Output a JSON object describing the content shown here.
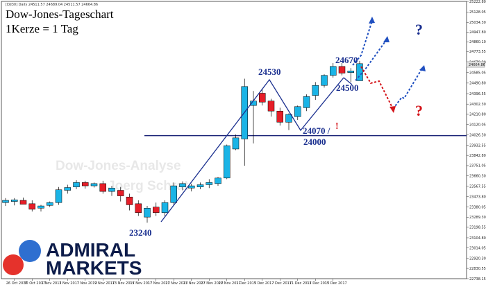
{
  "header": {
    "symbol_line": "[DJI30] Daily  24511.57 24689.04 24511.57 24664.86"
  },
  "titles": {
    "line1": "Dow-Jones-Tageschart",
    "line2": "1Kerze = 1 Tag"
  },
  "watermarks": {
    "line1": "Dow-Jones-Analyse",
    "line2": "Joerg Schrat"
  },
  "logo": {
    "line1": "ADMIRAL",
    "line2": "MARKETS",
    "colors": {
      "blue": "#2e6fd0",
      "red": "#e5322c",
      "text": "#0d1c4a"
    }
  },
  "annotations": {
    "low_label": "23240",
    "peak_label": "24530",
    "high_label": "24670",
    "pullback_label": "24500",
    "support_label_1": "24070 /",
    "support_label_2": "24000",
    "exclamation": "!",
    "question_up": "?",
    "question_down": "?"
  },
  "colors": {
    "bull": "#1ab4e6",
    "bear": "#e61e28",
    "annotation_blue": "#1a2f8f",
    "annotation_red": "#d4141a",
    "support_line": "#1a2377"
  },
  "chart_data": {
    "type": "candlestick",
    "title": "Dow-Jones-Tageschart",
    "subtitle": "1Kerze = 1 Tag",
    "symbol": "DJI30",
    "timeframe": "Daily",
    "ylim": [
      22738.15,
      25222.8
    ],
    "support_level": 24020,
    "current_price": 24664.86,
    "yticks": [
      "25222.80",
      "25128.05",
      "25034.30",
      "24947.80",
      "24860.10",
      "24773.55",
      "24679.30",
      "24585.05",
      "24490.80",
      "24396.55",
      "24302.30",
      "24210.80",
      "24120.05",
      "24026.30",
      "23932.55",
      "23842.80",
      "23751.05",
      "23660.30",
      "23567.55",
      "23473.80",
      "23380.05",
      "23289.30",
      "23198.55",
      "23104.80",
      "23014.05",
      "22920.30",
      "22830.55",
      "22738.15"
    ],
    "xticks": [
      "26 Oct 2017",
      "30 Oct 2017",
      "1 Nov 2017",
      "3 Nov 2017",
      "7 Nov 2017",
      "9 Nov 2017",
      "13 Nov 2017",
      "15 Nov 2017",
      "17 Nov 2017",
      "21 Nov 2017",
      "23 Nov 2017",
      "27 Nov 2017",
      "29 Nov 2017",
      "1 Dec 2017",
      "5 Dec 2017",
      "7 Dec 2017",
      "11 Dec 2017",
      "13 Dec 2017",
      "15 Dec 2017"
    ],
    "candles": [
      {
        "o": 23420,
        "h": 23460,
        "l": 23390,
        "c": 23440
      },
      {
        "o": 23430,
        "h": 23460,
        "l": 23395,
        "c": 23445
      },
      {
        "o": 23440,
        "h": 23465,
        "l": 23410,
        "c": 23405
      },
      {
        "o": 23410,
        "h": 23440,
        "l": 23340,
        "c": 23360
      },
      {
        "o": 23370,
        "h": 23400,
        "l": 23340,
        "c": 23390
      },
      {
        "o": 23395,
        "h": 23430,
        "l": 23380,
        "c": 23420
      },
      {
        "o": 23420,
        "h": 23560,
        "l": 23400,
        "c": 23535
      },
      {
        "o": 23530,
        "h": 23580,
        "l": 23500,
        "c": 23555
      },
      {
        "o": 23560,
        "h": 23620,
        "l": 23540,
        "c": 23600
      },
      {
        "o": 23600,
        "h": 23615,
        "l": 23545,
        "c": 23570
      },
      {
        "o": 23570,
        "h": 23600,
        "l": 23555,
        "c": 23590
      },
      {
        "o": 23590,
        "h": 23615,
        "l": 23500,
        "c": 23520
      },
      {
        "o": 23520,
        "h": 23570,
        "l": 23480,
        "c": 23550
      },
      {
        "o": 23530,
        "h": 23560,
        "l": 23430,
        "c": 23480
      },
      {
        "o": 23470,
        "h": 23500,
        "l": 23350,
        "c": 23400
      },
      {
        "o": 23410,
        "h": 23440,
        "l": 23300,
        "c": 23330
      },
      {
        "o": 23290,
        "h": 23390,
        "l": 23240,
        "c": 23370
      },
      {
        "o": 23380,
        "h": 23420,
        "l": 23300,
        "c": 23330
      },
      {
        "o": 23330,
        "h": 23440,
        "l": 23290,
        "c": 23420
      },
      {
        "o": 23420,
        "h": 23600,
        "l": 23400,
        "c": 23570
      },
      {
        "o": 23560,
        "h": 23610,
        "l": 23530,
        "c": 23590
      },
      {
        "o": 23550,
        "h": 23590,
        "l": 23520,
        "c": 23570
      },
      {
        "o": 23560,
        "h": 23600,
        "l": 23540,
        "c": 23580
      },
      {
        "o": 23580,
        "h": 23630,
        "l": 23550,
        "c": 23600
      },
      {
        "o": 23590,
        "h": 23650,
        "l": 23570,
        "c": 23640
      },
      {
        "o": 23640,
        "h": 23940,
        "l": 23630,
        "c": 23930
      },
      {
        "o": 23900,
        "h": 24030,
        "l": 23890,
        "c": 24000
      },
      {
        "o": 23990,
        "h": 24530,
        "l": 23750,
        "c": 24460
      },
      {
        "o": 24290,
        "h": 24420,
        "l": 23950,
        "c": 24330
      },
      {
        "o": 24400,
        "h": 24440,
        "l": 24290,
        "c": 24320
      },
      {
        "o": 24330,
        "h": 24350,
        "l": 24190,
        "c": 24240
      },
      {
        "o": 24240,
        "h": 24270,
        "l": 24110,
        "c": 24140
      },
      {
        "o": 24140,
        "h": 24220,
        "l": 24070,
        "c": 24210
      },
      {
        "o": 24190,
        "h": 24290,
        "l": 24160,
        "c": 24280
      },
      {
        "o": 24270,
        "h": 24390,
        "l": 24240,
        "c": 24370
      },
      {
        "o": 24380,
        "h": 24500,
        "l": 24340,
        "c": 24470
      },
      {
        "o": 24470,
        "h": 24570,
        "l": 24450,
        "c": 24560
      },
      {
        "o": 24560,
        "h": 24670,
        "l": 24540,
        "c": 24640
      },
      {
        "o": 24640,
        "h": 24670,
        "l": 24560,
        "c": 24580
      },
      {
        "o": 24585,
        "h": 24625,
        "l": 24500,
        "c": 24600
      },
      {
        "o": 24511.57,
        "h": 24689.04,
        "l": 24511.57,
        "c": 24664.86
      }
    ]
  }
}
